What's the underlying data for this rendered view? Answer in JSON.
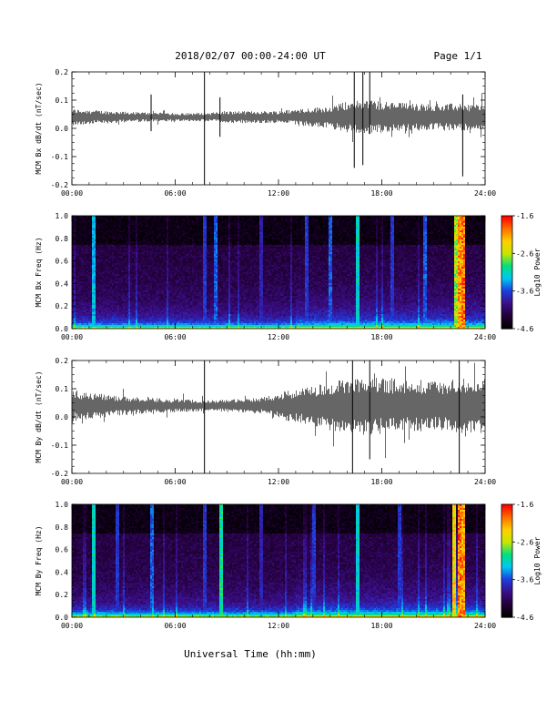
{
  "header": {
    "title": "2018/02/07  00:00-24:00 UT",
    "page": "Page 1/1"
  },
  "xlabel": "Universal Time (hh:mm)",
  "x_ticks": [
    "00:00",
    "06:00",
    "12:00",
    "18:00",
    "24:00"
  ],
  "colors": {
    "trace": "#000000",
    "colormap": [
      "#000000",
      "#24003a",
      "#3b0f8c",
      "#1c3fe0",
      "#00c8f0",
      "#00e080",
      "#c8e600",
      "#ffd000",
      "#ff7000",
      "#ff0000"
    ]
  },
  "chart_data": [
    {
      "type": "line",
      "ylabel": "MCM Bx dB/dt (nT/sec)",
      "xlim": [
        0,
        24
      ],
      "ylim": [
        -0.2,
        0.2
      ],
      "y_ticks": [
        "0.2",
        "0.1",
        "0.0",
        "-0.1",
        "-0.2"
      ],
      "baseline": 0.04,
      "noise_envelope": [
        [
          0,
          0.018
        ],
        [
          3,
          0.012
        ],
        [
          6,
          0.009
        ],
        [
          8,
          0.01
        ],
        [
          9,
          0.013
        ],
        [
          12,
          0.014
        ],
        [
          13,
          0.018
        ],
        [
          15,
          0.025
        ],
        [
          16,
          0.035
        ],
        [
          17,
          0.04
        ],
        [
          18,
          0.035
        ],
        [
          20,
          0.03
        ],
        [
          22,
          0.03
        ],
        [
          24,
          0.028
        ]
      ],
      "spikes": [
        {
          "t": 4.6,
          "min": -0.01,
          "max": 0.12
        },
        {
          "t": 7.7,
          "min": -0.2,
          "max": 0.2
        },
        {
          "t": 8.6,
          "min": -0.03,
          "max": 0.11
        },
        {
          "t": 16.4,
          "min": -0.14,
          "max": 0.2
        },
        {
          "t": 16.9,
          "min": -0.13,
          "max": 0.2
        },
        {
          "t": 17.3,
          "min": -0.02,
          "max": 0.2
        },
        {
          "t": 22.7,
          "min": -0.17,
          "max": 0.12
        }
      ]
    },
    {
      "type": "heatmap",
      "ylabel": "MCM Bx Freq (Hz)",
      "xlim": [
        0,
        24
      ],
      "ylim": [
        0.0,
        1.0
      ],
      "y_ticks": [
        "1.0",
        "0.8",
        "0.6",
        "0.4",
        "0.2",
        "0.0"
      ],
      "colorbar": {
        "label": "Log10 Power",
        "ticks": [
          "-1.6",
          "-2.6",
          "-3.6",
          "-4.6"
        ],
        "range": [
          -4.6,
          -1.6
        ]
      },
      "vertical_streaks": [
        {
          "t": 1.2,
          "level": 0.5
        },
        {
          "t": 7.7,
          "level": 0.35
        },
        {
          "t": 8.3,
          "level": 0.4
        },
        {
          "t": 11.0,
          "level": 0.3
        },
        {
          "t": 13.6,
          "level": 0.35
        },
        {
          "t": 15.0,
          "level": 0.4
        },
        {
          "t": 16.6,
          "level": 0.55
        },
        {
          "t": 18.6,
          "level": 0.35
        },
        {
          "t": 20.5,
          "level": 0.4
        },
        {
          "t": 22.3,
          "level": 0.75
        },
        {
          "t": 22.5,
          "level": 0.95
        },
        {
          "t": 22.7,
          "level": 1.0
        }
      ]
    },
    {
      "type": "line",
      "ylabel": "MCM By dB/dt (nT/sec)",
      "xlim": [
        0,
        24
      ],
      "ylim": [
        -0.2,
        0.2
      ],
      "y_ticks": [
        "0.2",
        "0.1",
        "0.0",
        "-0.1",
        "-0.2"
      ],
      "baseline": 0.04,
      "noise_envelope": [
        [
          0,
          0.035
        ],
        [
          2,
          0.025
        ],
        [
          4,
          0.018
        ],
        [
          6,
          0.015
        ],
        [
          8,
          0.012
        ],
        [
          11,
          0.018
        ],
        [
          12,
          0.03
        ],
        [
          14,
          0.045
        ],
        [
          15,
          0.055
        ],
        [
          17,
          0.065
        ],
        [
          19,
          0.06
        ],
        [
          21,
          0.055
        ],
        [
          24,
          0.065
        ]
      ],
      "spikes": [
        {
          "t": 7.7,
          "min": -0.2,
          "max": 0.2
        },
        {
          "t": 16.3,
          "min": -0.2,
          "max": 0.2
        },
        {
          "t": 17.3,
          "min": -0.15,
          "max": 0.2
        },
        {
          "t": 22.5,
          "min": -0.2,
          "max": 0.2
        }
      ]
    },
    {
      "type": "heatmap",
      "ylabel": "MCM By Freq (Hz)",
      "xlim": [
        0,
        24
      ],
      "ylim": [
        0.0,
        1.0
      ],
      "y_ticks": [
        "1.0",
        "0.8",
        "0.6",
        "0.4",
        "0.2",
        "0.0"
      ],
      "colorbar": {
        "label": "Log10 Power",
        "ticks": [
          "-1.6",
          "-2.6",
          "-3.6",
          "-4.6"
        ],
        "range": [
          -4.6,
          -1.6
        ]
      },
      "vertical_streaks": [
        {
          "t": 1.2,
          "level": 0.55
        },
        {
          "t": 2.6,
          "level": 0.35
        },
        {
          "t": 4.6,
          "level": 0.4
        },
        {
          "t": 7.7,
          "level": 0.35
        },
        {
          "t": 8.6,
          "level": 0.6
        },
        {
          "t": 11.0,
          "level": 0.3
        },
        {
          "t": 14.0,
          "level": 0.35
        },
        {
          "t": 16.6,
          "level": 0.55
        },
        {
          "t": 19.0,
          "level": 0.35
        },
        {
          "t": 22.2,
          "level": 0.85
        },
        {
          "t": 22.5,
          "level": 1.0
        },
        {
          "t": 22.7,
          "level": 0.95
        }
      ]
    }
  ]
}
